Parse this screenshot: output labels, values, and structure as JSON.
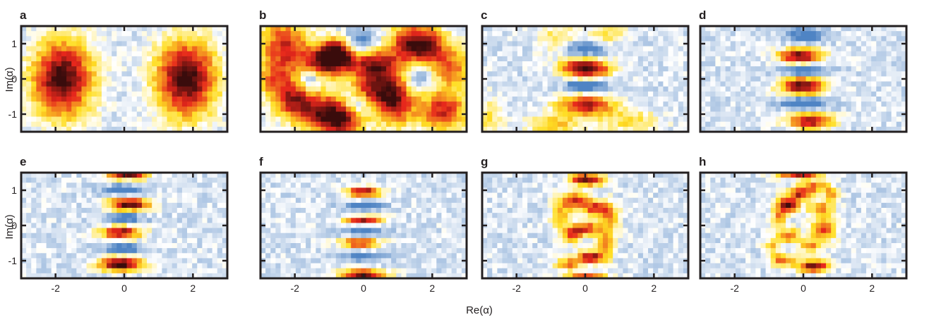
{
  "figure": {
    "xlabel": "Re(α)",
    "ylabel": "Im(α)",
    "xlim": [
      -3,
      3
    ],
    "ylim": [
      -1.5,
      1.5
    ],
    "x_ticks": [
      -2,
      0,
      2
    ],
    "x_tick_labels": [
      "-2",
      "0",
      "2"
    ],
    "y_ticks": [
      1,
      0,
      -1
    ],
    "y_tick_labels": [
      "1",
      "0",
      "-1"
    ],
    "colormap": [
      "#4f84c4",
      "#ffffff",
      "#ffde23",
      "#e6271c",
      "#3a0c0c"
    ]
  },
  "chart_data": [
    {
      "panel": "a",
      "type": "heatmap",
      "xlim": [
        -3,
        3
      ],
      "ylim": [
        -1.5,
        1.5
      ],
      "grid": [
        41,
        21
      ],
      "components": [
        {
          "x": -1.8,
          "y": 0.0,
          "sx": 0.6,
          "sy": 0.75,
          "a": 1.0
        },
        {
          "x": 1.8,
          "y": 0.0,
          "sx": 0.6,
          "sy": 0.75,
          "a": 1.0
        }
      ]
    },
    {
      "panel": "b",
      "type": "heatmap",
      "xlim": [
        -3,
        3
      ],
      "ylim": [
        -1.5,
        1.5
      ],
      "grid": [
        41,
        21
      ],
      "components": [
        {
          "x": -2.3,
          "y": 1.0,
          "sx": 0.5,
          "sy": 0.5,
          "a": 0.65
        },
        {
          "x": -1.2,
          "y": 0.5,
          "sx": 0.5,
          "sy": 0.3,
          "a": 0.75
        },
        {
          "x": -0.8,
          "y": 0.7,
          "sx": 0.3,
          "sy": 0.3,
          "a": 0.95
        },
        {
          "x": 0.3,
          "y": 0.4,
          "sx": 0.5,
          "sy": 0.3,
          "a": 0.8
        },
        {
          "x": 1.3,
          "y": 1.0,
          "sx": 0.4,
          "sy": 0.4,
          "a": 0.7
        },
        {
          "x": 1.9,
          "y": 0.9,
          "sx": 0.4,
          "sy": 0.4,
          "a": 0.65
        },
        {
          "x": -2.0,
          "y": -0.6,
          "sx": 0.4,
          "sy": 0.4,
          "a": 0.7
        },
        {
          "x": -1.1,
          "y": -1.0,
          "sx": 0.5,
          "sy": 0.4,
          "a": 0.85
        },
        {
          "x": 0.2,
          "y": -0.3,
          "sx": 0.4,
          "sy": 0.3,
          "a": 0.65
        },
        {
          "x": 0.9,
          "y": -0.6,
          "sx": 0.4,
          "sy": 0.5,
          "a": 0.85
        },
        {
          "x": 2.3,
          "y": -0.9,
          "sx": 0.5,
          "sy": 0.4,
          "a": 0.7
        },
        {
          "x": 2.6,
          "y": 0.3,
          "sx": 0.4,
          "sy": 0.4,
          "a": 0.5
        },
        {
          "x": -2.6,
          "y": 0.0,
          "sx": 0.4,
          "sy": 0.4,
          "a": 0.45
        },
        {
          "x": -0.5,
          "y": -1.2,
          "sx": 0.4,
          "sy": 0.3,
          "a": 0.55
        },
        {
          "x": -0.2,
          "y": -0.7,
          "sx": 0.25,
          "sy": 0.25,
          "a": -0.35
        },
        {
          "x": -1.6,
          "y": 0.0,
          "sx": 0.25,
          "sy": 0.25,
          "a": -0.35
        },
        {
          "x": 1.6,
          "y": 0.1,
          "sx": 0.3,
          "sy": 0.3,
          "a": -0.35
        },
        {
          "x": -0.1,
          "y": 1.1,
          "sx": 0.3,
          "sy": 0.25,
          "a": -0.3
        }
      ]
    },
    {
      "panel": "c",
      "type": "heatmap",
      "xlim": [
        -3,
        3
      ],
      "ylim": [
        -1.5,
        1.5
      ],
      "grid": [
        41,
        21
      ],
      "components": [
        {
          "x": 0.0,
          "y": 0.3,
          "sx": 0.5,
          "sy": 0.18,
          "a": 1.0
        },
        {
          "x": 0.0,
          "y": -0.75,
          "sx": 0.55,
          "sy": 0.2,
          "a": 0.8
        },
        {
          "x": 0.0,
          "y": -0.2,
          "sx": 0.45,
          "sy": 0.12,
          "a": -0.45
        },
        {
          "x": 0.0,
          "y": 0.85,
          "sx": 0.45,
          "sy": 0.15,
          "a": -0.35
        },
        {
          "x": -0.9,
          "y": -1.3,
          "sx": 0.6,
          "sy": 0.2,
          "a": 0.35
        },
        {
          "x": 1.3,
          "y": -1.2,
          "sx": 0.6,
          "sy": 0.25,
          "a": 0.3
        },
        {
          "x": -0.8,
          "y": 1.2,
          "sx": 0.4,
          "sy": 0.3,
          "a": 0.25
        },
        {
          "x": 0.6,
          "y": 1.3,
          "sx": 0.4,
          "sy": 0.2,
          "a": 0.28
        },
        {
          "x": -2.8,
          "y": -1.1,
          "sx": 0.3,
          "sy": 0.4,
          "a": 0.25
        }
      ]
    },
    {
      "panel": "d",
      "type": "heatmap",
      "xlim": [
        -3,
        3
      ],
      "ylim": [
        -1.5,
        1.5
      ],
      "grid": [
        41,
        21
      ],
      "components": [
        {
          "x": -0.1,
          "y": 0.65,
          "sx": 0.42,
          "sy": 0.15,
          "a": 0.95
        },
        {
          "x": 0.0,
          "y": -0.2,
          "sx": 0.45,
          "sy": 0.17,
          "a": 0.95
        },
        {
          "x": 0.2,
          "y": -1.2,
          "sx": 0.45,
          "sy": 0.15,
          "a": 0.85
        },
        {
          "x": 0.0,
          "y": 0.25,
          "sx": 0.45,
          "sy": 0.12,
          "a": -0.45
        },
        {
          "x": 0.0,
          "y": -0.7,
          "sx": 0.45,
          "sy": 0.12,
          "a": -0.45
        },
        {
          "x": 0.0,
          "y": 1.25,
          "sx": 0.4,
          "sy": 0.15,
          "a": -0.35
        }
      ]
    },
    {
      "panel": "e",
      "type": "heatmap",
      "xlim": [
        -3,
        3
      ],
      "ylim": [
        -1.5,
        1.5
      ],
      "grid": [
        41,
        21
      ],
      "components": [
        {
          "x": 0.1,
          "y": 1.45,
          "sx": 0.4,
          "sy": 0.1,
          "a": 0.9
        },
        {
          "x": 0.15,
          "y": 0.6,
          "sx": 0.4,
          "sy": 0.13,
          "a": 0.95
        },
        {
          "x": -0.1,
          "y": -0.2,
          "sx": 0.4,
          "sy": 0.13,
          "a": 0.85
        },
        {
          "x": -0.1,
          "y": -1.1,
          "sx": 0.45,
          "sy": 0.14,
          "a": 0.95
        },
        {
          "x": 0.0,
          "y": 1.0,
          "sx": 0.4,
          "sy": 0.1,
          "a": -0.4
        },
        {
          "x": 0.0,
          "y": 0.2,
          "sx": 0.4,
          "sy": 0.1,
          "a": -0.4
        },
        {
          "x": 0.0,
          "y": -0.65,
          "sx": 0.4,
          "sy": 0.1,
          "a": -0.4
        }
      ]
    },
    {
      "panel": "f",
      "type": "heatmap",
      "xlim": [
        -3,
        3
      ],
      "ylim": [
        -1.5,
        1.5
      ],
      "grid": [
        41,
        21
      ],
      "components": [
        {
          "x": 0.0,
          "y": 0.95,
          "sx": 0.35,
          "sy": 0.1,
          "a": 0.85
        },
        {
          "x": 0.0,
          "y": 0.15,
          "sx": 0.4,
          "sy": 0.08,
          "a": 0.75
        },
        {
          "x": -0.1,
          "y": -0.5,
          "sx": 0.38,
          "sy": 0.09,
          "a": 0.8
        },
        {
          "x": 0.0,
          "y": -1.4,
          "sx": 0.45,
          "sy": 0.1,
          "a": 0.95
        },
        {
          "x": 0.0,
          "y": 0.55,
          "sx": 0.4,
          "sy": 0.08,
          "a": -0.35
        },
        {
          "x": 0.0,
          "y": -0.15,
          "sx": 0.4,
          "sy": 0.08,
          "a": -0.35
        },
        {
          "x": 0.0,
          "y": -0.9,
          "sx": 0.4,
          "sy": 0.08,
          "a": -0.35
        }
      ]
    },
    {
      "panel": "g",
      "type": "heatmap",
      "xlim": [
        -3,
        3
      ],
      "ylim": [
        -1.5,
        1.5
      ],
      "grid": [
        41,
        21
      ],
      "components": [
        {
          "x": 0.05,
          "y": 1.3,
          "sx": 0.35,
          "sy": 0.12,
          "a": 0.9
        },
        {
          "x": -0.3,
          "y": 0.7,
          "sx": 0.25,
          "sy": 0.15,
          "a": 0.7
        },
        {
          "x": 0.3,
          "y": 0.5,
          "sx": 0.25,
          "sy": 0.15,
          "a": 0.7
        },
        {
          "x": 0.0,
          "y": -0.1,
          "sx": 0.3,
          "sy": 0.12,
          "a": 0.75
        },
        {
          "x": -0.4,
          "y": -0.3,
          "sx": 0.2,
          "sy": 0.15,
          "a": 0.55
        },
        {
          "x": 0.2,
          "y": -0.9,
          "sx": 0.3,
          "sy": 0.12,
          "a": 0.85
        },
        {
          "x": -0.5,
          "y": -1.1,
          "sx": 0.25,
          "sy": 0.12,
          "a": 0.5
        },
        {
          "x": 0.0,
          "y": -1.45,
          "sx": 0.4,
          "sy": 0.07,
          "a": 0.7
        },
        {
          "x": 0.7,
          "y": 0.2,
          "sx": 0.2,
          "sy": 0.3,
          "a": 0.45
        },
        {
          "x": -0.7,
          "y": 0.3,
          "sx": 0.2,
          "sy": 0.3,
          "a": 0.4
        },
        {
          "x": 0.6,
          "y": -0.5,
          "sx": 0.2,
          "sy": 0.2,
          "a": 0.45
        }
      ]
    },
    {
      "panel": "h",
      "type": "heatmap",
      "xlim": [
        -3,
        3
      ],
      "ylim": [
        -1.5,
        1.5
      ],
      "grid": [
        41,
        21
      ],
      "components": [
        {
          "x": -0.1,
          "y": 1.5,
          "sx": 0.45,
          "sy": 0.1,
          "a": 0.95
        },
        {
          "x": -0.1,
          "y": 0.9,
          "sx": 0.2,
          "sy": 0.12,
          "a": 0.7
        },
        {
          "x": 0.3,
          "y": 1.1,
          "sx": 0.25,
          "sy": 0.12,
          "a": 0.55
        },
        {
          "x": -0.4,
          "y": 0.6,
          "sx": 0.2,
          "sy": 0.15,
          "a": 0.85
        },
        {
          "x": 0.5,
          "y": 0.5,
          "sx": 0.25,
          "sy": 0.15,
          "a": 0.5
        },
        {
          "x": 0.6,
          "y": -0.1,
          "sx": 0.25,
          "sy": 0.25,
          "a": 0.6
        },
        {
          "x": -0.4,
          "y": -0.3,
          "sx": 0.25,
          "sy": 0.15,
          "a": 0.5
        },
        {
          "x": -0.6,
          "y": -1.0,
          "sx": 0.25,
          "sy": 0.12,
          "a": 0.6
        },
        {
          "x": 0.3,
          "y": -1.15,
          "sx": 0.3,
          "sy": 0.12,
          "a": 0.9
        },
        {
          "x": -0.7,
          "y": 0.3,
          "sx": 0.15,
          "sy": 0.3,
          "a": 0.45
        },
        {
          "x": 0.8,
          "y": 0.9,
          "sx": 0.15,
          "sy": 0.15,
          "a": 0.45
        },
        {
          "x": 0.2,
          "y": -0.6,
          "sx": 0.2,
          "sy": 0.15,
          "a": 0.45
        },
        {
          "x": -0.9,
          "y": -0.6,
          "sx": 0.15,
          "sy": 0.15,
          "a": 0.4
        }
      ]
    }
  ]
}
